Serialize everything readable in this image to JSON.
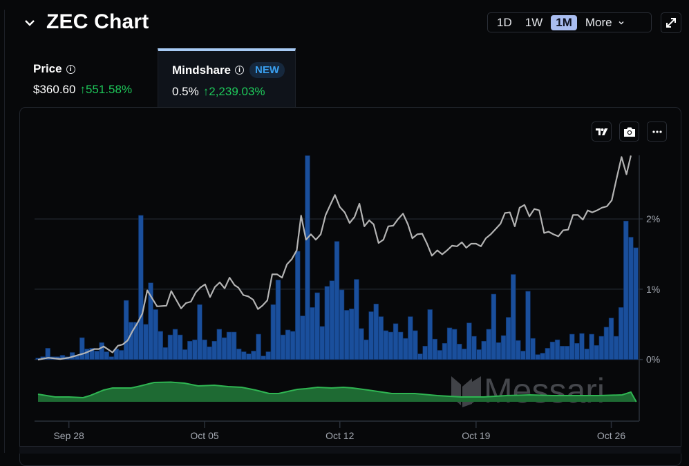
{
  "header": {
    "title": "ZEC Chart",
    "collapse_icon": "chevron-down-icon"
  },
  "timeframes": {
    "options": [
      "1D",
      "1W",
      "1M"
    ],
    "active": "1M",
    "more_label": "More"
  },
  "tabs": {
    "price": {
      "label": "Price",
      "value": "$360.60",
      "change": "551.58%"
    },
    "mindshare": {
      "label": "Mindshare",
      "badge": "NEW",
      "value": "0.5%",
      "change": "2,239.03%"
    }
  },
  "toolbar": {
    "icons": [
      "tradingview-icon",
      "camera-icon",
      "more-dots-icon"
    ]
  },
  "colors": {
    "bars": "#1a4f9c",
    "price_line": "#b4b4b4",
    "area": "#1e6a33",
    "area_line": "#2fb552",
    "grid": "#2a303a"
  },
  "watermark": "Messari",
  "chart_data": {
    "type": "bar+line",
    "title": "ZEC Chart",
    "y_axis": {
      "ticks": [
        "0%",
        "1%",
        "2%"
      ],
      "tick_values": [
        0,
        1,
        2
      ],
      "position": "right"
    },
    "x_axis": {
      "ticks": [
        {
          "label": "Sep 28",
          "index": 6.3
        },
        {
          "label": "Oct 05",
          "index": 34
        },
        {
          "label": "Oct 12",
          "index": 61.6
        },
        {
          "label": "Oct 19",
          "index": 89.4
        },
        {
          "label": "Oct 26",
          "index": 117
        }
      ]
    },
    "mindshare_percent": [
      0.02,
      0.04,
      0.16,
      0.04,
      0.04,
      0.06,
      0.04,
      0.1,
      0.05,
      0.31,
      0.15,
      0.16,
      0.12,
      0.24,
      0.11,
      0.04,
      0.15,
      0.13,
      0.84,
      0.53,
      0.53,
      2.05,
      0.5,
      1.09,
      0.71,
      0.4,
      0.17,
      0.35,
      0.43,
      0.35,
      0.14,
      0.26,
      0.28,
      0.78,
      0.28,
      0.18,
      0.26,
      0.43,
      0.31,
      0.39,
      0.39,
      0.15,
      0.11,
      0.08,
      0.12,
      0.36,
      0.05,
      0.11,
      0.78,
      1.13,
      0.35,
      0.42,
      0.4,
      1.54,
      0.62,
      2.9,
      0.74,
      0.95,
      0.47,
      1.04,
      1.12,
      1.68,
      0.99,
      0.7,
      0.72,
      1.14,
      0.44,
      0.28,
      0.68,
      0.79,
      0.61,
      0.41,
      0.39,
      0.51,
      0.39,
      0.3,
      0.61,
      0.41,
      0.08,
      0.19,
      0.71,
      0.29,
      0.13,
      0.23,
      0.45,
      0.43,
      0.22,
      0.15,
      0.52,
      0.33,
      0.14,
      0.26,
      0.43,
      0.93,
      0.24,
      0.34,
      0.6,
      1.21,
      0.27,
      0.12,
      0.97,
      0.3,
      0.07,
      0.09,
      0.16,
      0.25,
      0.28,
      0.19,
      0.19,
      0.36,
      0.23,
      0.37,
      0.15,
      0.36,
      0.2,
      0.33,
      0.46,
      0.59,
      0.33,
      0.74,
      1.97,
      1.74,
      1.59
    ],
    "price_usd": [
      [
        0,
        55
      ],
      [
        2.1,
        58
      ],
      [
        4.5,
        56
      ],
      [
        6.3,
        58
      ],
      [
        8.2,
        62
      ],
      [
        9.6,
        65
      ],
      [
        11.5,
        71
      ],
      [
        12.4,
        71
      ],
      [
        13.4,
        75
      ],
      [
        15.2,
        66
      ],
      [
        16.3,
        76
      ],
      [
        17.3,
        78
      ],
      [
        18.3,
        84
      ],
      [
        19.3,
        98
      ],
      [
        20.3,
        110
      ],
      [
        21.3,
        124
      ],
      [
        22.3,
        159
      ],
      [
        23.3,
        147
      ],
      [
        24.3,
        135
      ],
      [
        26.2,
        136
      ],
      [
        27.2,
        158
      ],
      [
        29.2,
        132
      ],
      [
        30.2,
        140
      ],
      [
        31.2,
        142
      ],
      [
        32.2,
        156
      ],
      [
        33.1,
        163
      ],
      [
        34.1,
        168
      ],
      [
        35.1,
        149
      ],
      [
        36.1,
        164
      ],
      [
        37.1,
        171
      ],
      [
        38.1,
        162
      ],
      [
        39.1,
        178
      ],
      [
        40.1,
        167
      ],
      [
        40.9,
        163
      ],
      [
        41.9,
        152
      ],
      [
        42.9,
        150
      ],
      [
        43.9,
        145
      ],
      [
        44.9,
        131
      ],
      [
        45.8,
        136
      ],
      [
        46.8,
        144
      ],
      [
        47.8,
        183
      ],
      [
        48.8,
        183
      ],
      [
        49.8,
        178
      ],
      [
        50.8,
        198
      ],
      [
        51.8,
        206
      ],
      [
        52.8,
        219
      ],
      [
        53.7,
        271
      ],
      [
        54.7,
        235
      ],
      [
        55.7,
        243
      ],
      [
        56.7,
        235
      ],
      [
        57.7,
        243
      ],
      [
        58.7,
        272
      ],
      [
        59.7,
        288
      ],
      [
        60.6,
        302
      ],
      [
        61.6,
        284
      ],
      [
        62.6,
        276
      ],
      [
        63.6,
        260
      ],
      [
        64.6,
        269
      ],
      [
        65.6,
        289
      ],
      [
        66.6,
        255
      ],
      [
        67.6,
        264
      ],
      [
        68.5,
        258
      ],
      [
        69.5,
        230
      ],
      [
        70.5,
        235
      ],
      [
        71.5,
        255
      ],
      [
        72.5,
        256
      ],
      [
        73.5,
        266
      ],
      [
        74.5,
        274
      ],
      [
        75.5,
        258
      ],
      [
        76.4,
        237
      ],
      [
        77.4,
        243
      ],
      [
        78.4,
        244
      ],
      [
        79.4,
        229
      ],
      [
        80.4,
        211
      ],
      [
        81.5,
        219
      ],
      [
        82.5,
        213
      ],
      [
        83.5,
        219
      ],
      [
        84.5,
        226
      ],
      [
        85.5,
        225
      ],
      [
        86.5,
        231
      ],
      [
        87.4,
        223
      ],
      [
        88.4,
        229
      ],
      [
        89.4,
        229
      ],
      [
        90.4,
        225
      ],
      [
        91.4,
        237
      ],
      [
        92.4,
        243
      ],
      [
        93.4,
        251
      ],
      [
        94.4,
        259
      ],
      [
        95.3,
        275
      ],
      [
        96.3,
        276
      ],
      [
        97.3,
        255
      ],
      [
        98.3,
        283
      ],
      [
        99.3,
        287
      ],
      [
        100.3,
        270
      ],
      [
        101.3,
        281
      ],
      [
        102.3,
        279
      ],
      [
        103.3,
        245
      ],
      [
        104.2,
        247
      ],
      [
        105.2,
        243
      ],
      [
        106.2,
        240
      ],
      [
        107.2,
        249
      ],
      [
        108.2,
        250
      ],
      [
        109.2,
        272
      ],
      [
        110.2,
        272
      ],
      [
        111.2,
        265
      ],
      [
        112.2,
        279
      ],
      [
        113.1,
        276
      ],
      [
        114.1,
        279
      ],
      [
        115.1,
        283
      ],
      [
        116.1,
        285
      ],
      [
        117.1,
        294
      ],
      [
        118.1,
        327
      ],
      [
        119.1,
        359
      ],
      [
        120.1,
        333
      ],
      [
        121,
        361
      ]
    ],
    "overview_area": [
      [
        0,
        11
      ],
      [
        3.5,
        7
      ],
      [
        6.3,
        7
      ],
      [
        9.2,
        6
      ],
      [
        10.6,
        9
      ],
      [
        13.4,
        17
      ],
      [
        15.2,
        20
      ],
      [
        19,
        20
      ],
      [
        20.9,
        23
      ],
      [
        23.7,
        28
      ],
      [
        27.1,
        28.5
      ],
      [
        29.9,
        27
      ],
      [
        32.7,
        23
      ],
      [
        36,
        24
      ],
      [
        38.8,
        22
      ],
      [
        41.6,
        21
      ],
      [
        44.4,
        17
      ],
      [
        47.2,
        12
      ],
      [
        49.1,
        12
      ],
      [
        52.9,
        18
      ],
      [
        54.7,
        19
      ],
      [
        57.1,
        21
      ],
      [
        59.9,
        20
      ],
      [
        62.3,
        21
      ],
      [
        64.2,
        20
      ],
      [
        67.4,
        17
      ],
      [
        72.2,
        12
      ],
      [
        76.9,
        12
      ],
      [
        81.5,
        9
      ],
      [
        86.3,
        7
      ],
      [
        91,
        7
      ],
      [
        95.6,
        9
      ],
      [
        100.4,
        10
      ],
      [
        105,
        9
      ],
      [
        109.7,
        9
      ],
      [
        114.5,
        9
      ],
      [
        119.2,
        10
      ],
      [
        121,
        14
      ],
      [
        122.1,
        0
      ]
    ]
  }
}
